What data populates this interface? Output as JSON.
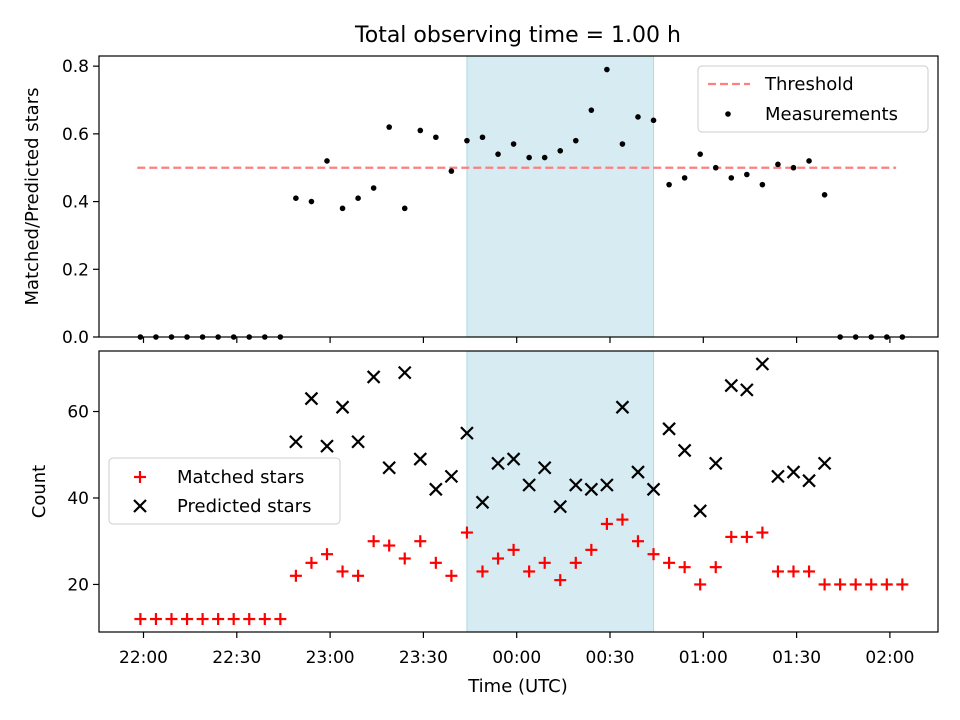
{
  "title": "Total observing time = 1.00 h",
  "xlabel": "Time (UTC)",
  "x_ticks": [
    "22:00",
    "22:30",
    "23:00",
    "23:30",
    "00:00",
    "00:30",
    "01:00",
    "01:30",
    "02:00"
  ],
  "colors": {
    "threshold": "#ff7f7f",
    "measurements": "#000000",
    "matched": "#ff0000",
    "predicted": "#000000",
    "shade": "#add8e6"
  },
  "chart_data": [
    {
      "type": "scatter",
      "ylabel": "Matched/Predicted stars",
      "ylim": [
        0,
        0.83
      ],
      "yticks": [
        0.0,
        0.2,
        0.4,
        0.6,
        0.8
      ],
      "ytick_labels": [
        "0.0",
        "0.2",
        "0.4",
        "0.6",
        "0.8"
      ],
      "shaded_interval": [
        "23:44",
        "00:44"
      ],
      "legend": "top-right",
      "series": [
        {
          "name": "Threshold",
          "style": "dashed-line",
          "x": [
            "21:58",
            "02:02"
          ],
          "y": [
            0.5,
            0.5
          ]
        },
        {
          "name": "Measurements",
          "style": "dot",
          "x": [
            "21:59",
            "22:04",
            "22:09",
            "22:14",
            "22:19",
            "22:24",
            "22:29",
            "22:34",
            "22:39",
            "22:44",
            "22:49",
            "22:54",
            "22:59",
            "23:04",
            "23:09",
            "23:14",
            "23:19",
            "23:24",
            "23:29",
            "23:34",
            "23:39",
            "23:44",
            "23:49",
            "23:54",
            "23:59",
            "00:04",
            "00:09",
            "00:14",
            "00:19",
            "00:24",
            "00:29",
            "00:34",
            "00:39",
            "00:44",
            "00:49",
            "00:54",
            "00:59",
            "01:04",
            "01:09",
            "01:14",
            "01:19",
            "01:24",
            "01:29",
            "01:34",
            "01:39",
            "01:44",
            "01:49",
            "01:54",
            "01:59",
            "02:04"
          ],
          "y": [
            0.0,
            0.0,
            0.0,
            0.0,
            0.0,
            0.0,
            0.0,
            0.0,
            0.0,
            0.0,
            0.41,
            0.4,
            0.52,
            0.38,
            0.41,
            0.44,
            0.62,
            0.38,
            0.61,
            0.59,
            0.49,
            0.58,
            0.59,
            0.54,
            0.57,
            0.53,
            0.53,
            0.55,
            0.58,
            0.67,
            0.79,
            0.57,
            0.65,
            0.64,
            0.45,
            0.47,
            0.54,
            0.5,
            0.47,
            0.48,
            0.45,
            0.51,
            0.5,
            0.52,
            0.42,
            0.0,
            0.0,
            0.0,
            0.0,
            0.0
          ]
        }
      ]
    },
    {
      "type": "scatter",
      "ylabel": "Count",
      "ylim": [
        9,
        74
      ],
      "yticks": [
        20,
        40,
        60
      ],
      "ytick_labels": [
        "20",
        "40",
        "60"
      ],
      "shaded_interval": [
        "23:44",
        "00:44"
      ],
      "legend": "center-left",
      "series": [
        {
          "name": "Matched stars",
          "style": "plus",
          "x": [
            "21:59",
            "22:04",
            "22:09",
            "22:14",
            "22:19",
            "22:24",
            "22:29",
            "22:34",
            "22:39",
            "22:44",
            "22:49",
            "22:54",
            "22:59",
            "23:04",
            "23:09",
            "23:14",
            "23:19",
            "23:24",
            "23:29",
            "23:34",
            "23:39",
            "23:44",
            "23:49",
            "23:54",
            "23:59",
            "00:04",
            "00:09",
            "00:14",
            "00:19",
            "00:24",
            "00:29",
            "00:34",
            "00:39",
            "00:44",
            "00:49",
            "00:54",
            "00:59",
            "01:04",
            "01:09",
            "01:14",
            "01:19",
            "01:24",
            "01:29",
            "01:34",
            "01:39",
            "01:44",
            "01:49",
            "01:54",
            "01:59",
            "02:04"
          ],
          "y": [
            12,
            12,
            12,
            12,
            12,
            12,
            12,
            12,
            12,
            12,
            22,
            25,
            27,
            23,
            22,
            30,
            29,
            26,
            30,
            25,
            22,
            32,
            23,
            26,
            28,
            23,
            25,
            21,
            25,
            28,
            34,
            35,
            30,
            27,
            25,
            24,
            20,
            24,
            31,
            31,
            32,
            23,
            23,
            23,
            20,
            20,
            20,
            20,
            20,
            20
          ]
        },
        {
          "name": "Predicted stars",
          "style": "x",
          "x": [
            "22:49",
            "22:54",
            "22:59",
            "23:04",
            "23:09",
            "23:14",
            "23:19",
            "23:24",
            "23:29",
            "23:34",
            "23:39",
            "23:44",
            "23:49",
            "23:54",
            "23:59",
            "00:04",
            "00:09",
            "00:14",
            "00:19",
            "00:24",
            "00:29",
            "00:34",
            "00:39",
            "00:44",
            "00:49",
            "00:54",
            "00:59",
            "01:04",
            "01:09",
            "01:14",
            "01:19",
            "01:24",
            "01:29",
            "01:34",
            "01:39"
          ],
          "y": [
            53,
            63,
            52,
            61,
            53,
            68,
            47,
            69,
            49,
            42,
            45,
            55,
            39,
            48,
            49,
            43,
            47,
            38,
            43,
            42,
            43,
            61,
            46,
            42,
            56,
            51,
            37,
            48,
            66,
            65,
            71,
            45,
            46,
            44,
            48
          ]
        }
      ]
    }
  ]
}
